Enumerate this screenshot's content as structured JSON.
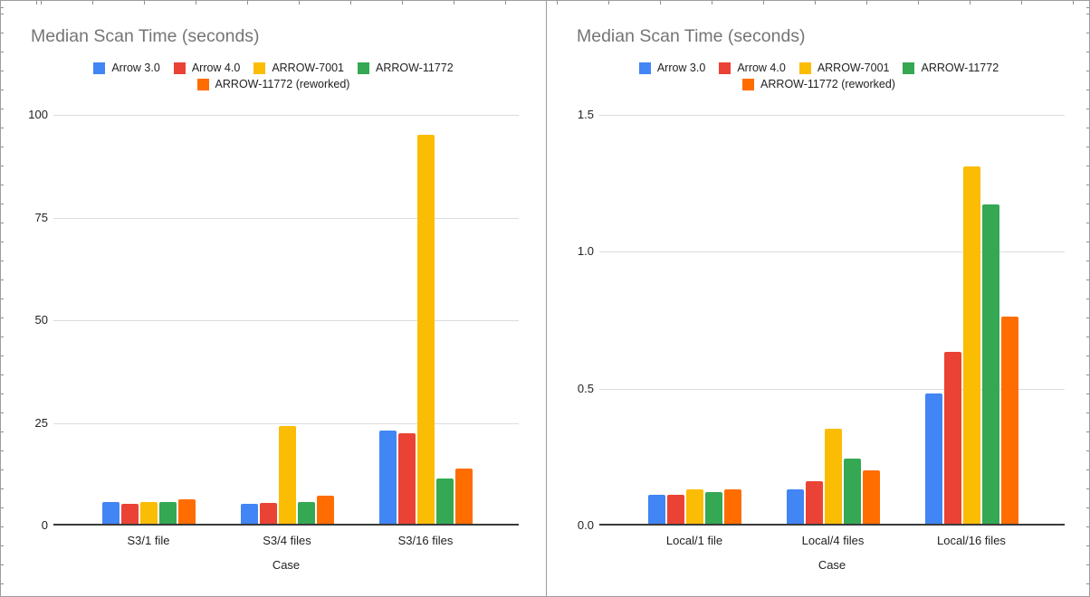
{
  "chart_data": [
    {
      "type": "bar",
      "title": "Median Scan Time (seconds)",
      "xlabel": "Case",
      "ylabel": "",
      "ylim": [
        0,
        100
      ],
      "grid": true,
      "legend_position": "top",
      "y_ticks": [
        {
          "v": 0,
          "label": "0"
        },
        {
          "v": 25,
          "label": "25"
        },
        {
          "v": 50,
          "label": "50"
        },
        {
          "v": 75,
          "label": "75"
        },
        {
          "v": 100,
          "label": "100"
        }
      ],
      "categories": [
        "S3/1 file",
        "S3/4 files",
        "S3/16 files"
      ],
      "series": [
        {
          "name": "Arrow 3.0",
          "color": "#4285f4",
          "values": [
            5.6,
            5.1,
            23.0
          ]
        },
        {
          "name": "Arrow 4.0",
          "color": "#ea4335",
          "values": [
            5.1,
            5.4,
            22.3
          ]
        },
        {
          "name": "ARROW-7001",
          "color": "#fbbc04",
          "values": [
            5.6,
            24.0,
            95.0
          ]
        },
        {
          "name": "ARROW-11772",
          "color": "#34a853",
          "values": [
            5.5,
            5.6,
            11.3
          ]
        },
        {
          "name": "ARROW-11772 (reworked)",
          "color": "#ff6d01",
          "values": [
            6.1,
            7.1,
            13.6
          ]
        }
      ]
    },
    {
      "type": "bar",
      "title": "Median Scan Time (seconds)",
      "xlabel": "Case",
      "ylabel": "",
      "ylim": [
        0,
        1.5
      ],
      "grid": true,
      "legend_position": "top",
      "y_ticks": [
        {
          "v": 0,
          "label": "0.0"
        },
        {
          "v": 0.5,
          "label": "0.5"
        },
        {
          "v": 1.0,
          "label": "1.0"
        },
        {
          "v": 1.5,
          "label": "1.5"
        }
      ],
      "categories": [
        "Local/1 file",
        "Local/4 files",
        "Local/16 files"
      ],
      "series": [
        {
          "name": "Arrow 3.0",
          "color": "#4285f4",
          "values": [
            0.11,
            0.13,
            0.48
          ]
        },
        {
          "name": "Arrow 4.0",
          "color": "#ea4335",
          "values": [
            0.11,
            0.16,
            0.63
          ]
        },
        {
          "name": "ARROW-7001",
          "color": "#fbbc04",
          "values": [
            0.13,
            0.35,
            1.31
          ]
        },
        {
          "name": "ARROW-11772",
          "color": "#34a853",
          "values": [
            0.12,
            0.24,
            1.17
          ]
        },
        {
          "name": "ARROW-11772 (reworked)",
          "color": "#ff6d01",
          "values": [
            0.13,
            0.2,
            0.76
          ]
        }
      ]
    }
  ],
  "theme": {
    "title_color": "#757575",
    "axis_label_color": "#222222",
    "gridline_color": "#dcdcdc",
    "axis_line_color": "#3a3a3a",
    "card_border_color": "#9d9d9d"
  }
}
